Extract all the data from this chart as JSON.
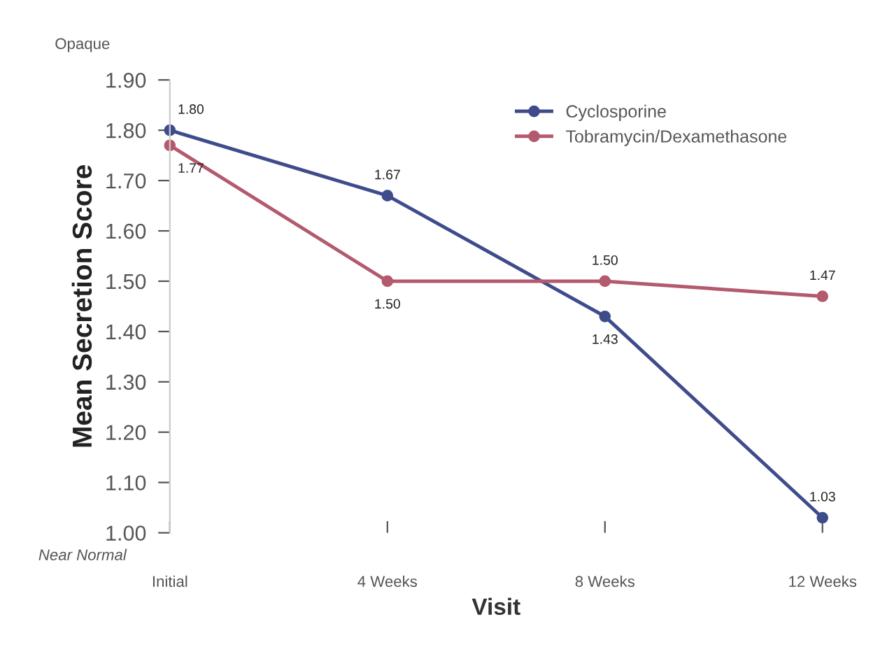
{
  "chart_data": {
    "type": "line",
    "xlabel": "Visit",
    "ylabel": "Mean Secretion Score",
    "categories": [
      "Initial",
      "4 Weeks",
      "8 Weeks",
      "12 Weeks"
    ],
    "series": [
      {
        "name": "Cyclosporine",
        "color": "#3f4c8c",
        "values": [
          1.8,
          1.67,
          1.43,
          1.03
        ],
        "value_labels": [
          "1.80",
          "1.67",
          "1.43",
          "1.03"
        ]
      },
      {
        "name": "Tobramycin/Dexamethasone",
        "color": "#b35a6e",
        "values": [
          1.77,
          1.5,
          1.5,
          1.47
        ],
        "value_labels": [
          "1.77",
          "1.50",
          "1.50",
          "1.47"
        ]
      }
    ],
    "ylim": [
      1.0,
      1.9
    ],
    "yticks": [
      {
        "value": 1.0,
        "label": "1.00"
      },
      {
        "value": 1.1,
        "label": "1.10"
      },
      {
        "value": 1.2,
        "label": "1.20"
      },
      {
        "value": 1.3,
        "label": "1.30"
      },
      {
        "value": 1.4,
        "label": "1.40"
      },
      {
        "value": 1.5,
        "label": "1.50"
      },
      {
        "value": 1.6,
        "label": "1.60"
      },
      {
        "value": 1.7,
        "label": "1.70"
      },
      {
        "value": 1.8,
        "label": "1.80"
      },
      {
        "value": 1.9,
        "label": "1.90"
      }
    ],
    "annotations": [
      "Opaque",
      "Near Normal"
    ],
    "legend": "top right",
    "grid": false,
    "marker": "circle",
    "line_style": "solid"
  }
}
